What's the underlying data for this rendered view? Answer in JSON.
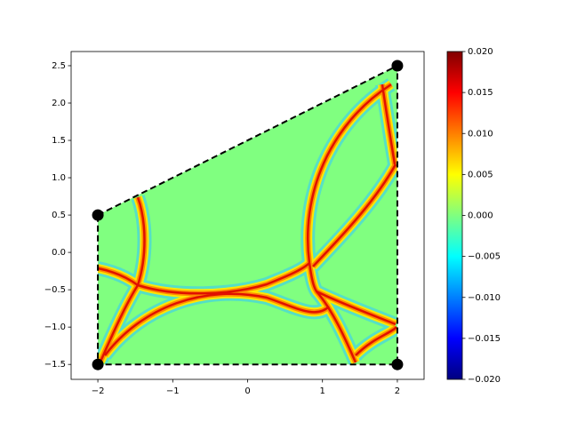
{
  "chart_data": {
    "type": "heatmap",
    "colormap": "jet",
    "xlim": [
      -2.357,
      2.357
    ],
    "ylim": [
      -1.7,
      2.69
    ],
    "xticks": [
      {
        "value": -2,
        "label": "−2"
      },
      {
        "value": -1,
        "label": "−1"
      },
      0,
      1,
      2
    ],
    "yticks": [
      {
        "value": -1.5,
        "label": "−1.5"
      },
      {
        "value": -1.0,
        "label": "−1.0"
      },
      {
        "value": -0.5,
        "label": "−0.5"
      },
      {
        "value": 0.0,
        "label": "0.0"
      },
      0.5,
      {
        "value": 1.0,
        "label": "1.0"
      },
      1.5,
      {
        "value": 2.0,
        "label": "2.0"
      },
      2.5
    ],
    "clim": [
      -0.02,
      0.02
    ],
    "cticks": [
      {
        "value": -0.02,
        "label": "−0.020"
      },
      {
        "value": -0.015,
        "label": "−0.015"
      },
      {
        "value": -0.01,
        "label": "−0.010"
      },
      {
        "value": -0.005,
        "label": "−0.005"
      },
      {
        "value": 0.0,
        "label": "0.000"
      },
      {
        "value": 0.005,
        "label": "0.005"
      },
      {
        "value": 0.01,
        "label": "0.010"
      },
      {
        "value": 0.015,
        "label": "0.015"
      },
      {
        "value": 0.02,
        "label": "0.020"
      }
    ],
    "boundary": {
      "x": [
        -2,
        2,
        2,
        -2
      ],
      "y": [
        0.5,
        2.5,
        -1.5,
        -1.5
      ],
      "color": "#000000"
    }
  }
}
